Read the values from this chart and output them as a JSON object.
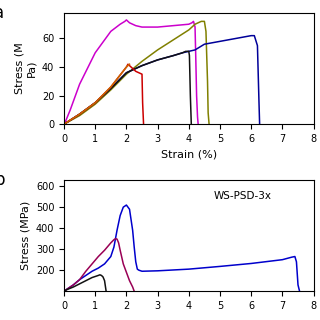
{
  "panel_a": {
    "ylabel": "Stress (M\nPa)",
    "xlabel": "Strain (%)",
    "yticks": [
      0,
      20,
      40,
      60
    ],
    "xticks": [
      0,
      1,
      2,
      3,
      4,
      5,
      6,
      7,
      8
    ],
    "xlim": [
      0,
      8
    ],
    "ylim": [
      0,
      78
    ],
    "curves": [
      {
        "color": "#cc00cc",
        "x": [
          0,
          0.05,
          0.2,
          0.5,
          1.0,
          1.5,
          1.8,
          1.95,
          2.0,
          2.05,
          2.1,
          2.2,
          2.3,
          2.5,
          3.0,
          3.5,
          4.0,
          4.1,
          4.15,
          4.2,
          4.22,
          4.25,
          4.28,
          4.3
        ],
        "y": [
          0,
          2,
          10,
          28,
          50,
          65,
          70,
          72,
          73,
          72,
          71,
          70,
          69,
          68,
          68,
          69,
          70,
          71,
          72,
          68,
          50,
          20,
          5,
          0
        ]
      },
      {
        "color": "#808000",
        "x": [
          0,
          0.5,
          1.0,
          1.5,
          2.0,
          2.5,
          3.0,
          3.5,
          4.0,
          4.2,
          4.4,
          4.5,
          4.55,
          4.6,
          4.62,
          4.65
        ],
        "y": [
          0,
          6,
          14,
          24,
          35,
          44,
          52,
          59,
          66,
          70,
          72,
          72,
          65,
          30,
          8,
          0
        ]
      },
      {
        "color": "#000099",
        "x": [
          0,
          0.5,
          1.0,
          1.5,
          2.0,
          2.5,
          3.0,
          3.5,
          3.8,
          4.0,
          4.2,
          4.5,
          5.0,
          5.5,
          6.0,
          6.1,
          6.2,
          6.25,
          6.27
        ],
        "y": [
          0,
          7,
          15,
          25,
          36,
          41,
          45,
          48,
          50,
          51,
          52,
          56,
          58,
          60,
          62,
          62,
          55,
          15,
          0
        ]
      },
      {
        "color": "#111111",
        "x": [
          0,
          0.5,
          1.0,
          1.5,
          2.0,
          2.5,
          3.0,
          3.5,
          3.8,
          3.9,
          4.0,
          4.02,
          4.05,
          4.08
        ],
        "y": [
          0,
          7,
          15,
          25,
          36,
          41,
          45,
          48,
          50,
          51,
          51,
          48,
          20,
          0
        ]
      },
      {
        "color": "#cc0000",
        "x": [
          0,
          0.5,
          1.0,
          1.5,
          2.0,
          2.05,
          2.1,
          2.2,
          2.3,
          2.4,
          2.5,
          2.52,
          2.55
        ],
        "y": [
          0,
          7,
          15,
          26,
          40,
          42,
          41,
          39,
          37,
          36,
          35,
          15,
          0
        ]
      },
      {
        "color": "#cc6600",
        "x": [
          0,
          0.5,
          1.0,
          1.5,
          2.0,
          2.1
        ],
        "y": [
          0,
          7,
          15,
          26,
          40,
          42
        ]
      }
    ]
  },
  "panel_b": {
    "ylabel": "Stress (MPa)",
    "yticks": [
      200,
      300,
      400,
      500,
      600
    ],
    "xlim": [
      0,
      8
    ],
    "ylim": [
      100,
      630
    ],
    "annotation": "WS-PSD-3x",
    "curves": [
      {
        "color": "#0000cc",
        "x": [
          0.0,
          0.1,
          0.3,
          0.5,
          0.7,
          0.9,
          1.1,
          1.3,
          1.5,
          1.6,
          1.7,
          1.8,
          1.9,
          2.0,
          2.1,
          2.2,
          2.25,
          2.3,
          2.35,
          2.4,
          2.5,
          3.0,
          4.0,
          5.0,
          6.0,
          7.0,
          7.3,
          7.4,
          7.45,
          7.5,
          7.55
        ],
        "y": [
          100,
          110,
          130,
          155,
          175,
          195,
          210,
          230,
          265,
          310,
          390,
          460,
          500,
          510,
          490,
          390,
          310,
          240,
          205,
          200,
          195,
          197,
          205,
          218,
          232,
          250,
          262,
          265,
          240,
          130,
          100
        ]
      },
      {
        "color": "#990055",
        "x": [
          0.0,
          0.1,
          0.3,
          0.5,
          0.7,
          0.9,
          1.1,
          1.3,
          1.5,
          1.6,
          1.65,
          1.7,
          1.75,
          1.8,
          1.9,
          2.0,
          2.1,
          2.2,
          2.25
        ],
        "y": [
          100,
          110,
          130,
          155,
          195,
          230,
          265,
          295,
          330,
          345,
          350,
          348,
          330,
          295,
          230,
          190,
          150,
          120,
          100
        ]
      },
      {
        "color": "#111111",
        "x": [
          0.0,
          0.1,
          0.3,
          0.5,
          0.7,
          0.9,
          1.0,
          1.1,
          1.15,
          1.2,
          1.25,
          1.3,
          1.35
        ],
        "y": [
          100,
          108,
          120,
          135,
          150,
          165,
          170,
          175,
          178,
          175,
          168,
          150,
          100
        ]
      }
    ]
  }
}
